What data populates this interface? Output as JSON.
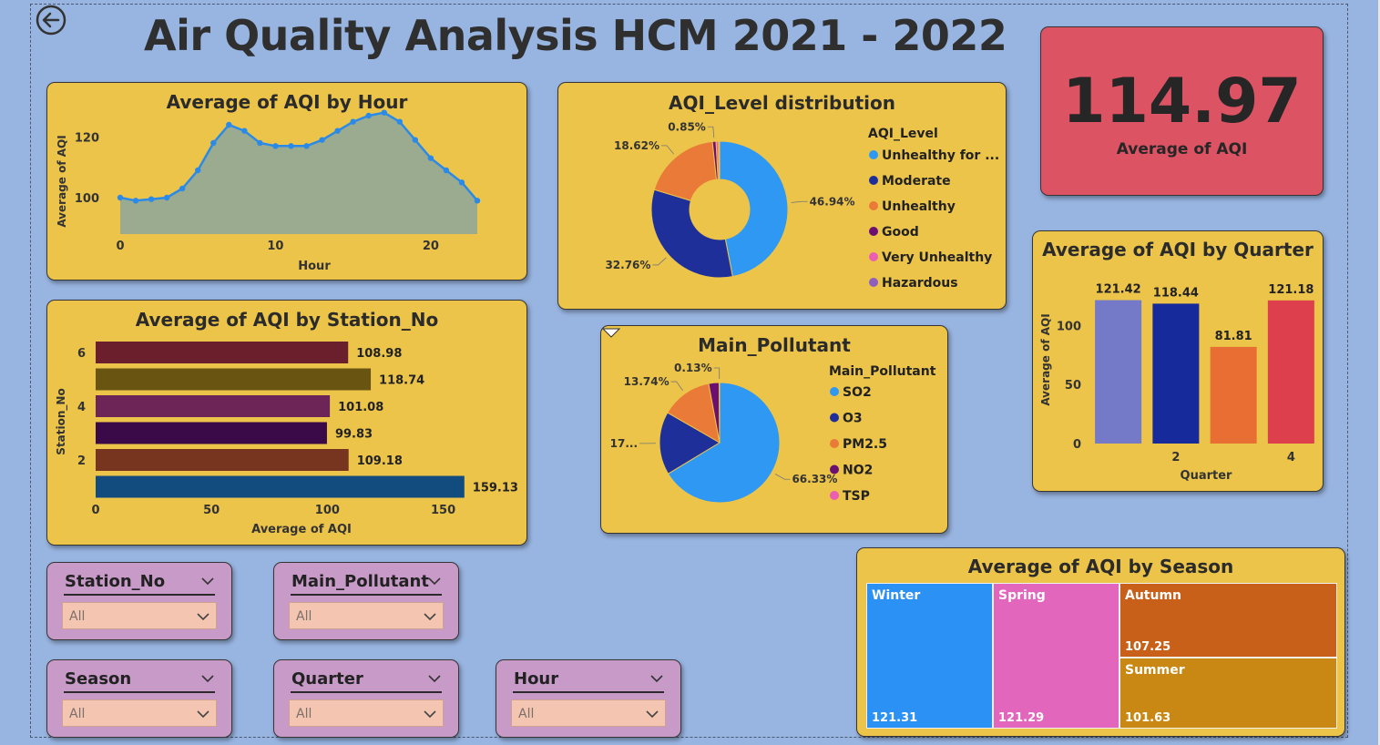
{
  "page": {
    "title": "Air Quality Analysis HCM 2021 - 2022",
    "icons": {
      "back": "back-arrow-icon",
      "dropdown": "chevron-down-icon"
    }
  },
  "kpi": {
    "value": "114.97",
    "label": "Average of AQI"
  },
  "slicers": [
    {
      "label": "Station_No",
      "value": "All"
    },
    {
      "label": "Main_Pollutant",
      "value": "All"
    },
    {
      "label": "Season",
      "value": "All"
    },
    {
      "label": "Quarter",
      "value": "All"
    },
    {
      "label": "Hour",
      "value": "All"
    }
  ],
  "chart_data": [
    {
      "id": "hour",
      "type": "area",
      "title": "Average of AQI by Hour",
      "xlabel": "Hour",
      "ylabel": "Average of AQI",
      "x": [
        0,
        1,
        2,
        3,
        4,
        5,
        6,
        7,
        8,
        9,
        10,
        11,
        12,
        13,
        14,
        15,
        16,
        17,
        18,
        19,
        20,
        21,
        22,
        23
      ],
      "values": [
        100,
        99,
        99.5,
        100,
        103,
        109,
        118,
        124,
        122,
        118,
        117,
        117,
        117,
        119,
        122,
        125,
        127,
        128,
        125,
        119,
        113,
        109,
        105,
        99
      ],
      "xticks": [
        "0",
        "10",
        "20"
      ],
      "yticks": [
        "100",
        "120"
      ],
      "ylim": [
        88,
        130
      ],
      "colors": {
        "area": "#9aab8f",
        "line": "#2b8ae8"
      }
    },
    {
      "id": "level",
      "type": "pie",
      "title": "AQI_Level distribution",
      "legend_title": "AQI_Level",
      "legend_position": "right",
      "categories": [
        "Unhealthy for ...",
        "Moderate",
        "Unhealthy",
        "Good",
        "Very Unhealthy",
        "Hazardous"
      ],
      "values": [
        46.94,
        32.76,
        18.62,
        0.85,
        0.6,
        0.23
      ],
      "labels": [
        "46.94%",
        "32.76%",
        "18.62%",
        "0.85%",
        "",
        ""
      ],
      "colors": [
        "#2f98f2",
        "#1f2f9a",
        "#ea7a37",
        "#6c0f72",
        "#ea5fb2",
        "#8f5fbd"
      ]
    },
    {
      "id": "quarter",
      "type": "bar",
      "title": "Average of AQI by Quarter",
      "xlabel": "Quarter",
      "ylabel": "Average of AQI",
      "categories": [
        "1",
        "2",
        "3",
        "4"
      ],
      "xticks": [
        "",
        "2",
        "",
        "4"
      ],
      "values": [
        121.42,
        118.44,
        81.81,
        121.18
      ],
      "labels": [
        "121.42",
        "118.44",
        "81.81",
        "121.18"
      ],
      "yticks": [
        "0",
        "50",
        "100"
      ],
      "ylim": [
        0,
        128
      ],
      "colors": [
        "#7479c8",
        "#172a9b",
        "#e86e33",
        "#de3f4c"
      ]
    },
    {
      "id": "station",
      "type": "bar",
      "orientation": "horizontal",
      "title": "Average of AQI by Station_No",
      "xlabel": "Average of AQI",
      "ylabel": "Station_No",
      "categories": [
        "6",
        "5",
        "4",
        "3",
        "2",
        "1"
      ],
      "yticks": [
        "6",
        "",
        "4",
        "",
        "2",
        ""
      ],
      "values": [
        108.98,
        118.74,
        101.08,
        99.83,
        109.18,
        159.13
      ],
      "labels": [
        "108.98",
        "118.74",
        "101.08",
        "99.83",
        "109.18",
        "159.13"
      ],
      "xticks": [
        "0",
        "50",
        "100",
        "150"
      ],
      "xlim": [
        0,
        160
      ],
      "colors": [
        "#6b1f2c",
        "#6a5412",
        "#6d2457",
        "#3a0a48",
        "#77341e",
        "#124b7e"
      ]
    },
    {
      "id": "pollutant",
      "type": "pie",
      "title": "Main_Pollutant",
      "legend_title": "Main_Pollutant",
      "legend_position": "right",
      "categories": [
        "SO2",
        "O3",
        "PM2.5",
        "NO2",
        "TSP"
      ],
      "values": [
        66.33,
        17.0,
        13.74,
        2.8,
        0.13
      ],
      "labels": [
        "66.33%",
        "17...",
        "13.74%",
        "",
        "0.13%"
      ],
      "colors": [
        "#2f98f2",
        "#1f2f9a",
        "#ea7a37",
        "#6c0f72",
        "#ea5fb2"
      ]
    },
    {
      "id": "season",
      "type": "heatmap",
      "title": "Average of AQI by Season",
      "categories": [
        "Winter",
        "Spring",
        "Autumn",
        "Summer"
      ],
      "values": [
        121.31,
        121.29,
        107.25,
        101.63
      ],
      "labels": [
        "121.31",
        "121.29",
        "107.25",
        "101.63"
      ],
      "colors": [
        "#2b91f5",
        "#e366bd",
        "#c9601a",
        "#c98813"
      ]
    }
  ]
}
